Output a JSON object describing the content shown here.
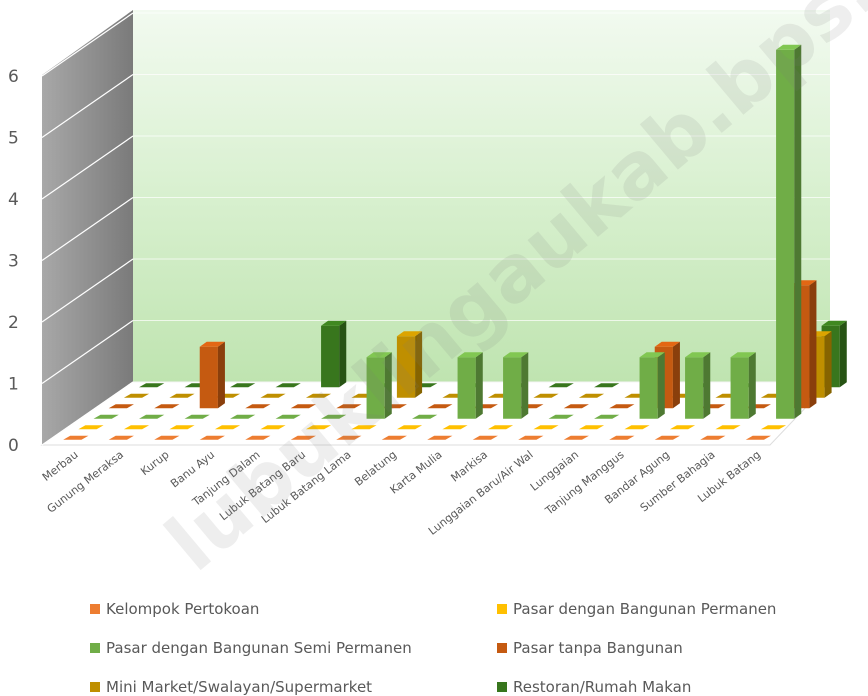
{
  "chart_data": {
    "type": "bar",
    "categories": [
      "Merbau",
      "Gunung Meraksa",
      "Kurup",
      "Banu Ayu",
      "Tanjung Dalam",
      "Lubuk Batang Baru",
      "Lubuk Batang Lama",
      "Belatung",
      "Karta Mulia",
      "Markisa",
      "Lunggaian Baru/Air Wal",
      "Lunggaian",
      "Tanjung Manggus",
      "Bandar Agung",
      "Sumber Bahagia",
      "Lubuk Batang"
    ],
    "series": [
      {
        "name": "Kelompok Pertokoan",
        "color": "#ED7D31",
        "values": [
          0,
          0,
          0,
          0,
          0,
          0,
          0,
          0,
          0,
          0,
          0,
          0,
          0,
          0,
          0,
          0
        ]
      },
      {
        "name": "Pasar dengan Bangunan Permanen",
        "color": "#FFC000",
        "values": [
          0,
          0,
          0,
          0,
          0,
          0,
          0,
          0,
          0,
          0,
          0,
          0,
          0,
          0,
          0,
          0
        ]
      },
      {
        "name": "Pasar dengan Bangunan Semi Permanen",
        "color": "#70AD47",
        "values": [
          0,
          0,
          0,
          0,
          0,
          0,
          1,
          0,
          1,
          1,
          0,
          0,
          1,
          1,
          1,
          6
        ]
      },
      {
        "name": "Pasar tanpa Bangunan",
        "color": "#C55A11",
        "values": [
          0,
          0,
          1,
          0,
          0,
          0,
          0,
          0,
          0,
          0,
          0,
          0,
          1,
          0,
          0,
          2
        ]
      },
      {
        "name": "Mini Market/Swalayan/Supermarket",
        "color": "#BF8F00",
        "values": [
          0,
          0,
          0,
          0,
          0,
          0,
          1,
          0,
          0,
          0,
          0,
          0,
          0,
          0,
          0,
          1
        ]
      },
      {
        "name": "Restoran/Rumah Makan",
        "color": "#38761D",
        "values": [
          0,
          0,
          0,
          0,
          1,
          0,
          0,
          0,
          0,
          0,
          0,
          0,
          0,
          0,
          0,
          1
        ]
      }
    ],
    "y_ticks": [
      "0",
      "1",
      "2",
      "3",
      "4",
      "5",
      "6"
    ],
    "ylim": [
      0,
      6
    ],
    "legend_position": "bottom",
    "grid": true
  },
  "watermark": "lubuklingaukab.bps.go.id"
}
